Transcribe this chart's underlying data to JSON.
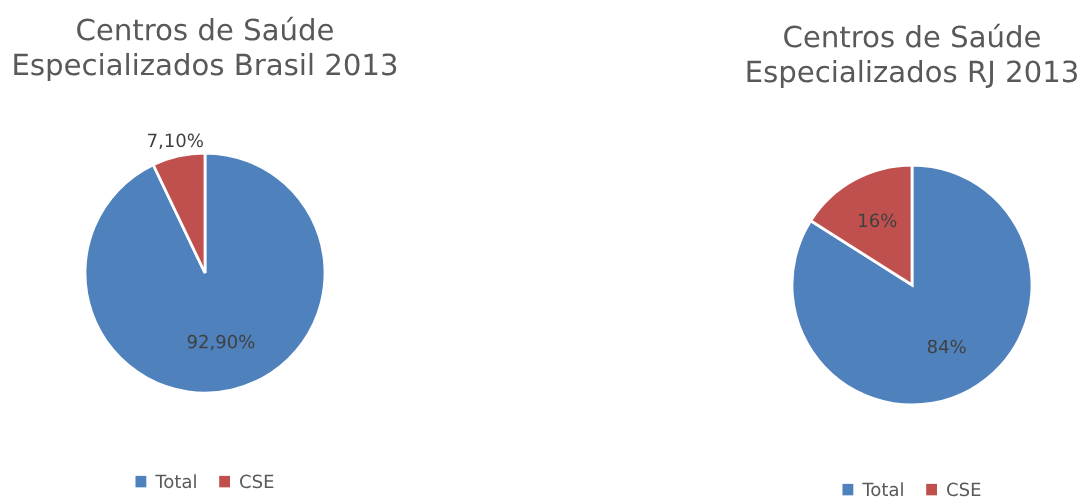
{
  "chart_data": [
    {
      "type": "pie",
      "title": "Centros de Saúde\nEspecializados Brasil 2013",
      "categories": [
        "Total",
        "CSE"
      ],
      "values": [
        92.9,
        7.1
      ],
      "colors": [
        "#4f81bd",
        "#c0504d"
      ],
      "value_labels": [
        "92,90%",
        "7,10%"
      ],
      "legend": "bottom"
    },
    {
      "type": "pie",
      "title": "Centros de Saúde\nEspecializados RJ 2013",
      "categories": [
        "Total",
        "CSE"
      ],
      "values": [
        84,
        16
      ],
      "colors": [
        "#4f81bd",
        "#c0504d"
      ],
      "value_labels": [
        "84%",
        "16%"
      ],
      "legend": "bottom"
    }
  ]
}
